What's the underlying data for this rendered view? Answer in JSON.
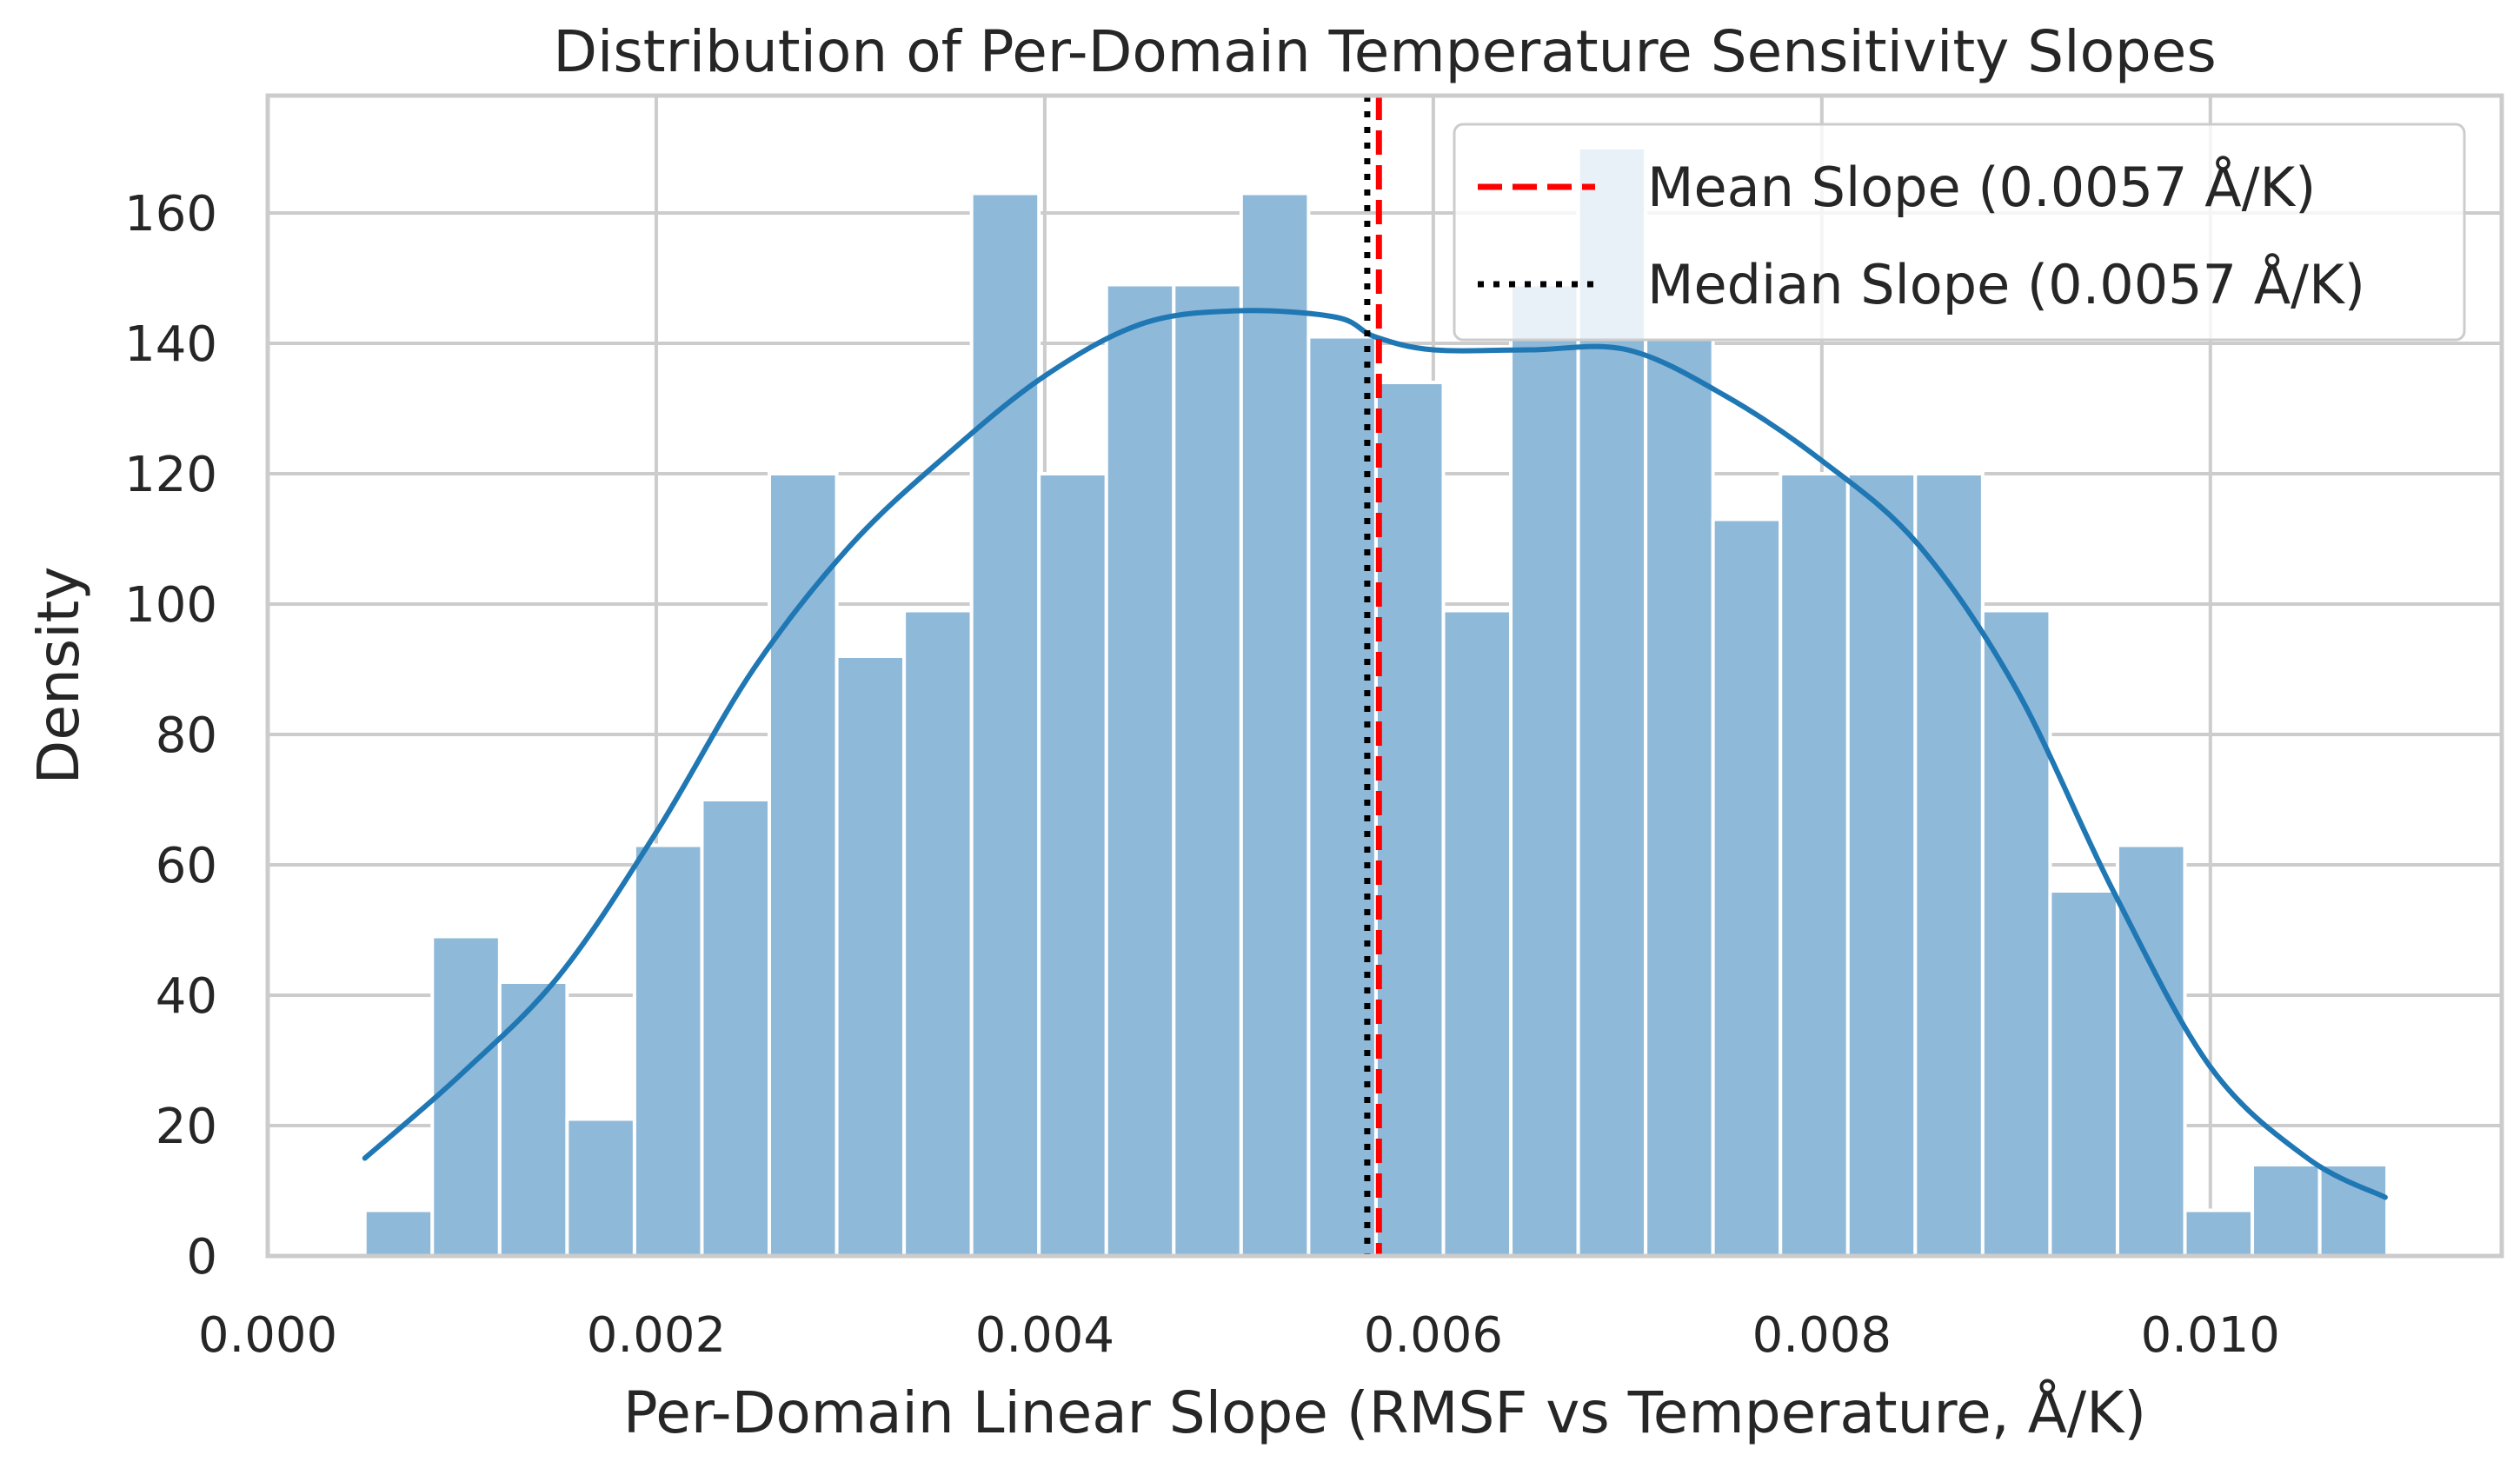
{
  "chart_data": {
    "type": "bar",
    "title": "Distribution of Per-Domain Temperature Sensitivity Slopes",
    "xlabel": "Per-Domain Linear Slope (RMSF vs Temperature, Å/K)",
    "ylabel": "Density",
    "xlim": [
      0.0,
      0.0115
    ],
    "ylim": [
      0,
      178
    ],
    "grid": true,
    "legend_position": "top-right",
    "x_ticks": [
      {
        "value": 0.0,
        "label": "0.000"
      },
      {
        "value": 0.002,
        "label": "0.002"
      },
      {
        "value": 0.004,
        "label": "0.004"
      },
      {
        "value": 0.006,
        "label": "0.006"
      },
      {
        "value": 0.008,
        "label": "0.008"
      },
      {
        "value": 0.01,
        "label": "0.010"
      }
    ],
    "y_ticks": [
      {
        "value": 0,
        "label": "0"
      },
      {
        "value": 20,
        "label": "20"
      },
      {
        "value": 40,
        "label": "40"
      },
      {
        "value": 60,
        "label": "60"
      },
      {
        "value": 80,
        "label": "80"
      },
      {
        "value": 100,
        "label": "100"
      },
      {
        "value": 120,
        "label": "120"
      },
      {
        "value": 140,
        "label": "140"
      },
      {
        "value": 160,
        "label": "160"
      }
    ],
    "histogram": {
      "color": "#8fb9d9",
      "edge_color": "#ffffff",
      "bin_start": 0.0005,
      "bin_width": 0.000347,
      "densities": [
        7,
        49,
        42,
        21,
        63,
        70,
        120,
        92,
        99,
        163,
        120,
        149,
        149,
        163,
        141,
        134,
        99,
        149,
        170,
        141,
        113,
        120,
        120,
        120,
        99,
        56,
        63,
        7,
        14,
        14
      ]
    },
    "kde": {
      "color": "#1f77b4",
      "x": [
        0.0005,
        0.001,
        0.0015,
        0.002,
        0.0025,
        0.003,
        0.0035,
        0.004,
        0.0045,
        0.005,
        0.0055,
        0.0057,
        0.006,
        0.0065,
        0.007,
        0.0075,
        0.008,
        0.0085,
        0.009,
        0.0095,
        0.01,
        0.0105,
        0.0109
      ],
      "y": [
        15,
        28,
        43,
        65,
        90,
        109,
        123,
        135,
        143,
        145,
        144,
        141,
        139,
        139,
        139,
        132,
        122,
        109,
        87,
        56,
        29,
        15,
        9
      ]
    },
    "lines": [
      {
        "name": "Mean Slope (0.0057 Å/K)",
        "x": 0.00572,
        "color": "#ff0000",
        "style": "dashed"
      },
      {
        "name": "Median Slope (0.0057 Å/K)",
        "x": 0.00566,
        "color": "#000000",
        "style": "dotted"
      }
    ]
  }
}
